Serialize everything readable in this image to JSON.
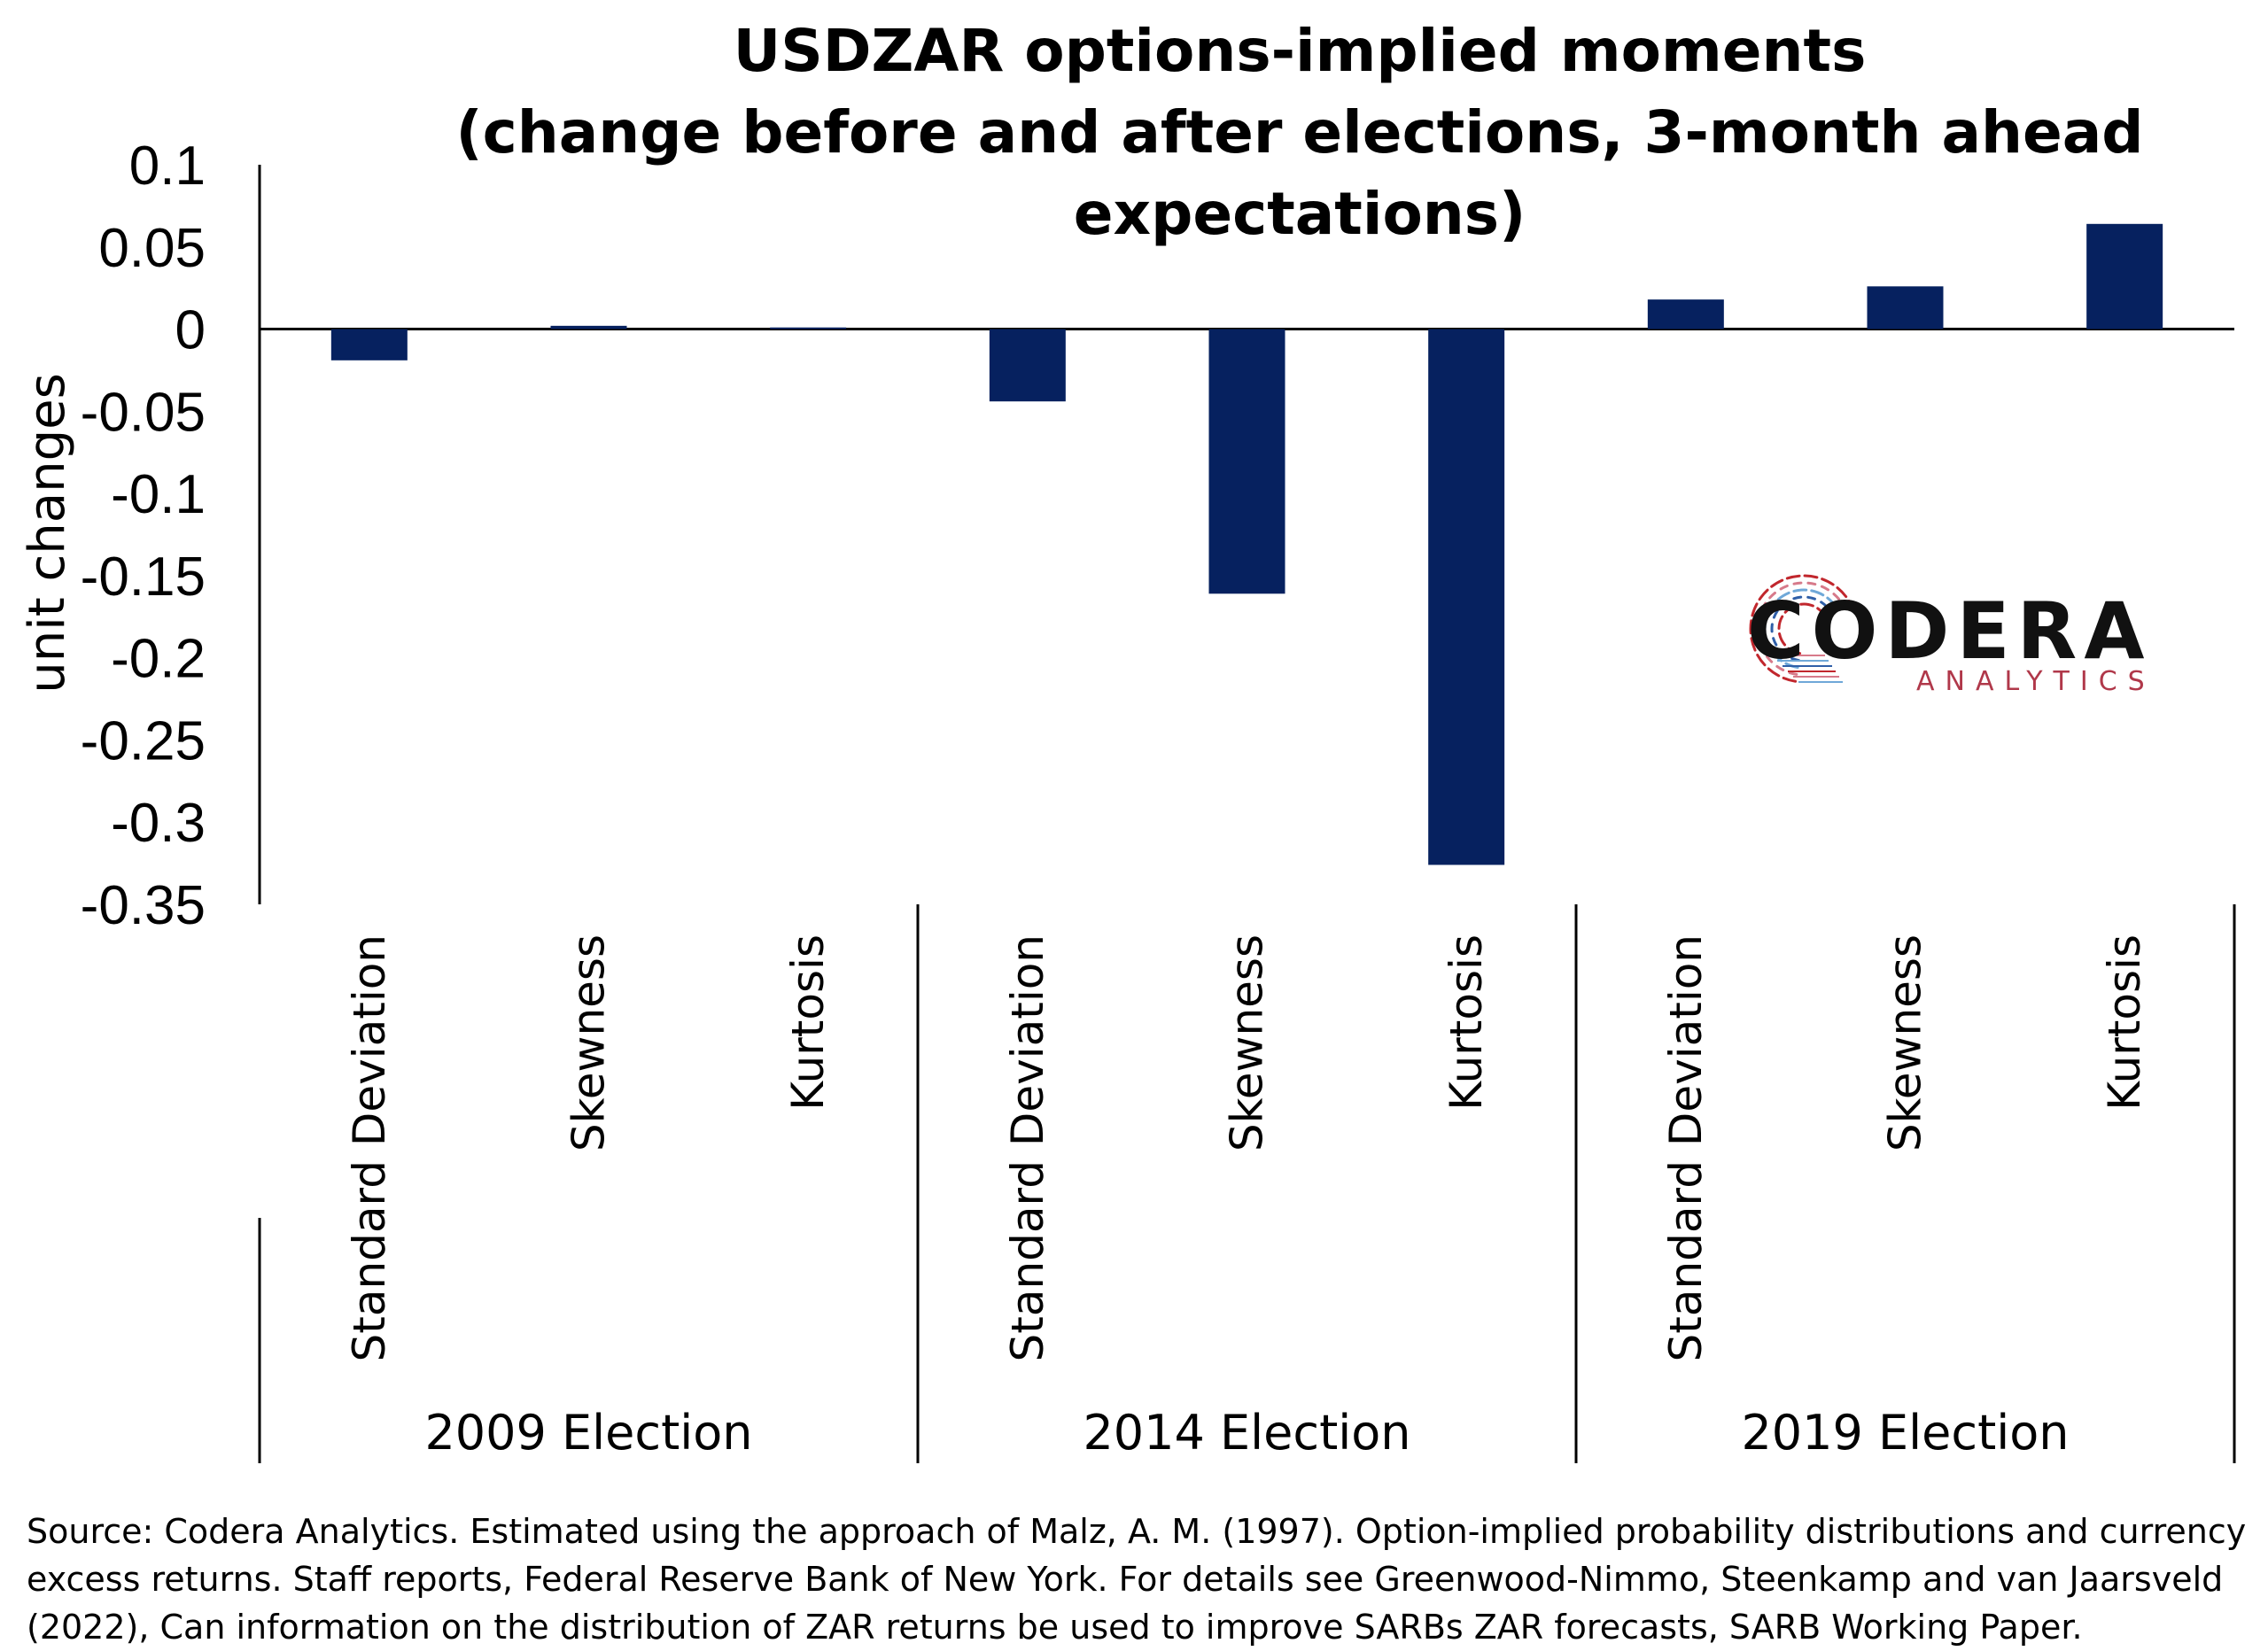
{
  "chart_data": {
    "type": "bar",
    "title_lines": [
      "USDZAR options-implied moments",
      "(change before and after elections, 3-month ahead",
      "expectations)"
    ],
    "ylabel": "unit changes",
    "ylim": [
      -0.35,
      0.1
    ],
    "yticks": [
      "0.1",
      "0.05",
      "0",
      "-0.05",
      "-0.1",
      "-0.15",
      "-0.2",
      "-0.25",
      "-0.3",
      "-0.35"
    ],
    "ytick_values": [
      0.1,
      0.05,
      0,
      -0.05,
      -0.1,
      -0.15,
      -0.2,
      -0.25,
      -0.3,
      -0.35
    ],
    "groups": [
      {
        "label": "2009 Election",
        "categories": [
          "Standard Deviation",
          "Skewness",
          "Kurtosis"
        ],
        "values": [
          -0.019,
          0.002,
          0.001
        ]
      },
      {
        "label": "2014 Election",
        "categories": [
          "Standard Deviation",
          "Skewness",
          "Kurtosis"
        ],
        "values": [
          -0.044,
          -0.161,
          -0.326
        ]
      },
      {
        "label": "2019 Election",
        "categories": [
          "Standard Deviation",
          "Skewness",
          "Kurtosis"
        ],
        "values": [
          0.018,
          0.026,
          0.064
        ]
      }
    ],
    "bar_color": "#06215f",
    "grid": false,
    "legend": "none"
  },
  "logo": {
    "main": "CODERA",
    "sub": "ANALYTICS",
    "arc_colors": [
      "#c1272d",
      "#d77a8a",
      "#6fa8d8",
      "#2f5fa8"
    ]
  },
  "source_note": {
    "lines": [
      "Source: Codera Analytics. Estimated using the approach of Malz, A. M. (1997). Option-implied probability distributions and currency",
      "excess returns. Staff reports, Federal Reserve Bank of New York. For details see Greenwood-Nimmo, Steenkamp and van Jaarsveld",
      "(2022), Can information on the distribution of ZAR returns be used to improve SARBs ZAR forecasts, SARB Working Paper."
    ]
  }
}
